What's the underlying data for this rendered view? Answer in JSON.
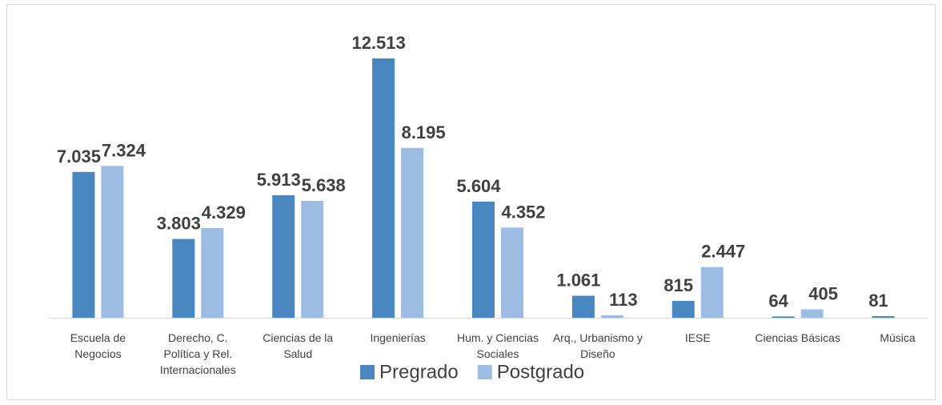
{
  "chart_data": {
    "type": "bar",
    "categories": [
      "Escuela de Negocios",
      "Derecho, C. Política y Rel. Internacionales",
      "Ciencias de la Salud",
      "Ingenierías",
      "Hum. y Ciencias Sociales",
      "Arq., Urbanismo y Diseño",
      "IESE",
      "Ciencias Básicas",
      "Música"
    ],
    "series": [
      {
        "name": "Pregrado",
        "color": "#4a86c0",
        "values": [
          7035,
          3803,
          5913,
          12513,
          5604,
          1061,
          815,
          64,
          81
        ],
        "value_labels": [
          "7.035",
          "3.803",
          "5.913",
          "12.513",
          "5.604",
          "1.061",
          "815",
          "64",
          "81"
        ]
      },
      {
        "name": "Postgrado",
        "color": "#9dbce3",
        "values": [
          7324,
          4329,
          5638,
          8195,
          4352,
          113,
          2447,
          405,
          null
        ],
        "value_labels": [
          "7.324",
          "4.329",
          "5.638",
          "8.195",
          "4.352",
          "113",
          "2.447",
          "405",
          null
        ]
      }
    ],
    "legend": "bottom"
  }
}
